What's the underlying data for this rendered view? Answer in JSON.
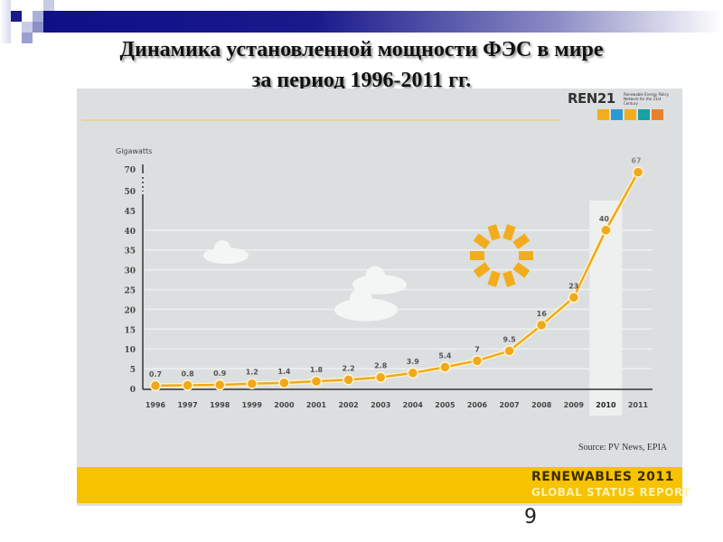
{
  "slide": {
    "title_line1": "Динамика установленной  мощности ФЭС в мире",
    "title_line2": "за период 1996-2011 гг.",
    "page_number": "9"
  },
  "infographic": {
    "logo": "REN21",
    "logo_subtitle": "Renewable Energy Policy Network for the 21st Century",
    "source": "Source: PV News, EPIA",
    "banner_line1": "RENEWABLES 2011",
    "banner_line2": "GLOBAL STATUS REPORT"
  },
  "colors": {
    "line": "#f0a81c",
    "banner": "#f7c200",
    "header": "#1a1a8c",
    "panel": "#dcdfe0"
  },
  "chart_data": {
    "type": "line",
    "title": "",
    "ylabel": "Gigawatts",
    "xlabel": "",
    "x": [
      "1996",
      "1997",
      "1998",
      "1999",
      "2000",
      "2001",
      "2002",
      "2003",
      "2004",
      "2005",
      "2006",
      "2007",
      "2008",
      "2009",
      "2010",
      "2011"
    ],
    "values": [
      0.7,
      0.8,
      0.9,
      1.2,
      1.4,
      1.8,
      2.2,
      2.8,
      3.9,
      5.4,
      7,
      9.5,
      16,
      23,
      40,
      67
    ],
    "labels": [
      "0.7",
      "0.8",
      "0.9",
      "1.2",
      "1.4",
      "1.8",
      "2.2",
      "2.8",
      "3.9",
      "5.4",
      "7",
      "9.5",
      "16",
      "23",
      "40",
      "67"
    ],
    "yticks": [
      "0",
      "5",
      "10",
      "15",
      "20",
      "25",
      "30",
      "35",
      "40",
      "45",
      "50",
      "70"
    ],
    "ylim": [
      0,
      70
    ],
    "axis_break": "between 50 and 70",
    "highlighted": "2010",
    "grid": true
  }
}
